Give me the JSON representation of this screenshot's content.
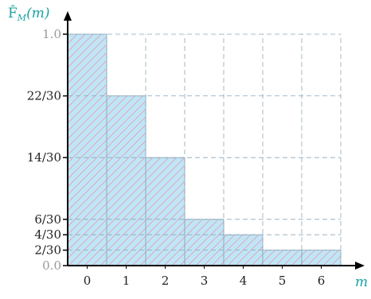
{
  "chart_data": {
    "type": "bar",
    "title": "",
    "ylabel": "F̂_M(m)",
    "ylabel_main": "F̂",
    "ylabel_sub": "M",
    "ylabel_arg": "(m)",
    "xlabel": "m",
    "categories": [
      "0",
      "1",
      "2",
      "3",
      "4",
      "5",
      "6"
    ],
    "values": [
      1.0,
      0.7333,
      0.4667,
      0.2,
      0.1333,
      0.0667,
      0.0667
    ],
    "xlim": [
      -0.5,
      7.2
    ],
    "ylim": [
      0,
      1.2
    ],
    "y_ticks": [
      {
        "value": 0.0,
        "label": "0.0",
        "color": "#999999"
      },
      {
        "value": 0.0667,
        "label": "2/30",
        "color": "#222222"
      },
      {
        "value": 0.1333,
        "label": "4/30",
        "color": "#222222"
      },
      {
        "value": 0.2,
        "label": "6/30",
        "color": "#222222"
      },
      {
        "value": 0.4667,
        "label": "14/30",
        "color": "#222222"
      },
      {
        "value": 0.7333,
        "label": "22/30",
        "color": "#222222"
      },
      {
        "value": 1.0,
        "label": "1.0",
        "color": "#999999"
      }
    ],
    "bar_fill": "#bfe6f8",
    "hatch_color": "#e3a1a6",
    "grid_color": "#8aa6b8",
    "axis_color": "#000000",
    "ylabel_color": "#1aa3a3",
    "xlabel_color": "#1aa3a3",
    "grid": true
  }
}
